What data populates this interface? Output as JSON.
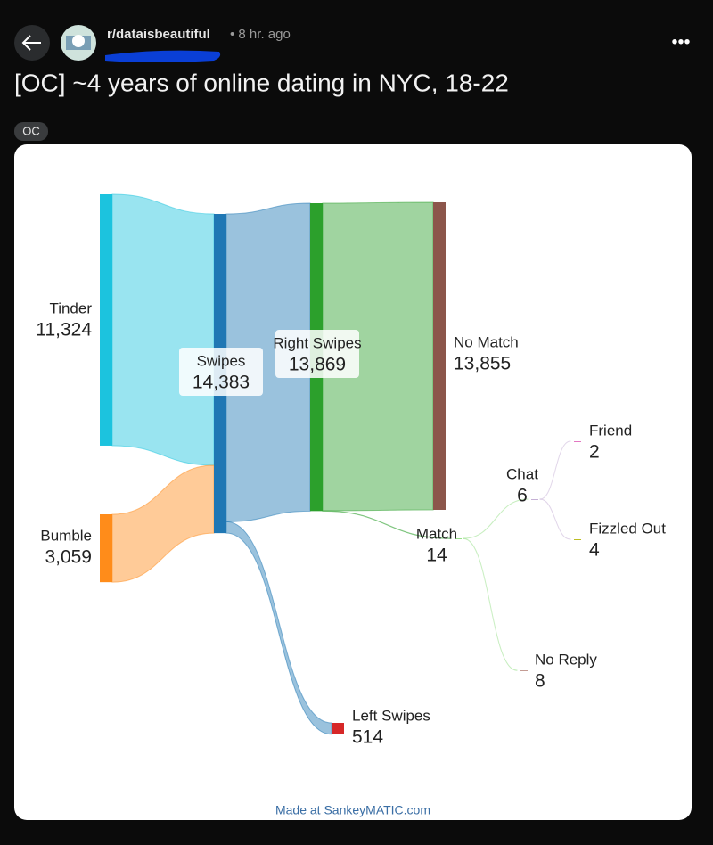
{
  "header": {
    "subreddit": "r/dataisbeautiful",
    "time": "• 8 hr. ago",
    "title": "[OC] ~4 years of online dating in NYC, 18-22",
    "flair": "OC"
  },
  "chart_data": {
    "type": "sankey",
    "nodes": [
      {
        "name": "Tinder",
        "value": 11324,
        "value_label": "11,324",
        "color": "#1cc3de"
      },
      {
        "name": "Bumble",
        "value": 3059,
        "value_label": "3,059",
        "color": "#ff8c1a"
      },
      {
        "name": "Swipes",
        "value": 14383,
        "value_label": "14,383",
        "color": "#1f77b4"
      },
      {
        "name": "Right Swipes",
        "value": 13869,
        "value_label": "13,869",
        "color": "#2ca02c"
      },
      {
        "name": "Left Swipes",
        "value": 514,
        "color": "#d62728"
      },
      {
        "name": "No Match",
        "value": 13855,
        "value_label": "13,855",
        "color": "#8c564b"
      },
      {
        "name": "Match",
        "value": 14,
        "color": "#98df8a"
      },
      {
        "name": "Chat",
        "value": 6,
        "color": "#c5b0d5"
      },
      {
        "name": "No Reply",
        "value": 8,
        "color": "#c49c94"
      },
      {
        "name": "Friend",
        "value": 2,
        "color": "#e377c2"
      },
      {
        "name": "Fizzled Out",
        "value": 4,
        "color": "#bcbd22"
      }
    ],
    "links": [
      {
        "source": 0,
        "target": 2,
        "value": 11324
      },
      {
        "source": 1,
        "target": 2,
        "value": 3059
      },
      {
        "source": 2,
        "target": 3,
        "value": 13869
      },
      {
        "source": 2,
        "target": 4,
        "value": 514
      },
      {
        "source": 3,
        "target": 5,
        "value": 13855
      },
      {
        "source": 3,
        "target": 6,
        "value": 14
      },
      {
        "source": 6,
        "target": 7,
        "value": 6
      },
      {
        "source": 6,
        "target": 8,
        "value": 8
      },
      {
        "source": 7,
        "target": 9,
        "value": 2
      },
      {
        "source": 7,
        "target": 10,
        "value": 4
      }
    ],
    "footer": "Made at SankeyMATIC.com"
  }
}
